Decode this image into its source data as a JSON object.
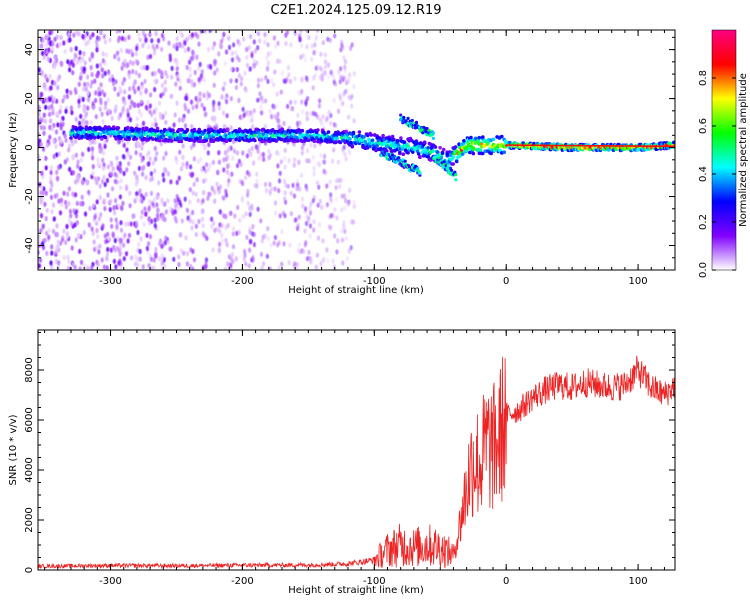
{
  "figure": {
    "title": "C2E1.2024.125.09.12.R19"
  },
  "chart_data": [
    {
      "type": "heatmap",
      "title": "C2E1.2024.125.09.12.R19",
      "xlabel": "Height of straight line (km)",
      "ylabel": "Frequency (Hz)",
      "xlim": [
        -355,
        128
      ],
      "ylim": [
        -50,
        48
      ],
      "x_ticks": [
        -300,
        -200,
        -100,
        0,
        100
      ],
      "y_ticks": [
        -40,
        -20,
        0,
        20,
        40
      ],
      "grid": false,
      "colorbar": {
        "label": "Normalized spectral amplitude",
        "range": [
          0,
          1
        ],
        "ticks": [
          0.0,
          0.2,
          0.4,
          0.6,
          0.8
        ],
        "colormap": [
          "#ffffff",
          "#8000ff",
          "#0000ff",
          "#00ffff",
          "#00ff00",
          "#ffff00",
          "#ff0000",
          "#ff0080"
        ]
      },
      "ridge": {
        "description_free": true,
        "x": [
          -330,
          -300,
          -250,
          -200,
          -150,
          -120,
          -100,
          -85,
          -70,
          -55,
          -45,
          -38,
          -30,
          -20,
          -10,
          0,
          50,
          100,
          128
        ],
        "y": [
          6,
          6,
          5,
          5,
          5,
          4,
          2,
          1,
          0,
          -2,
          -5,
          -3,
          1,
          1,
          1,
          1,
          0,
          0,
          1
        ]
      },
      "secondary_branches": [
        {
          "x": [
            -80,
            -65,
            -55
          ],
          "y": [
            12,
            8,
            5
          ]
        },
        {
          "x": [
            -95,
            -80,
            -65
          ],
          "y": [
            -2,
            -6,
            -10
          ]
        },
        {
          "x": [
            -55,
            -45,
            -38
          ],
          "y": [
            -4,
            -8,
            -12
          ]
        }
      ],
      "noise_region_x": [
        -355,
        -115
      ]
    },
    {
      "type": "line",
      "xlabel": "Height of straight line (km)",
      "ylabel": "SNR (10 * v/v)",
      "xlim": [
        -355,
        128
      ],
      "ylim": [
        0,
        9600
      ],
      "x_ticks": [
        -300,
        -200,
        -100,
        0,
        100
      ],
      "y_ticks": [
        0,
        2000,
        4000,
        6000,
        8000
      ],
      "grid": false,
      "series_color": "#ee2222",
      "x": [
        -355,
        -300,
        -250,
        -200,
        -150,
        -120,
        -100,
        -90,
        -80,
        -70,
        -60,
        -50,
        -40,
        -35,
        -30,
        -25,
        -20,
        -15,
        -10,
        -5,
        0,
        10,
        20,
        30,
        40,
        50,
        60,
        70,
        80,
        90,
        100,
        110,
        120,
        128
      ],
      "y": [
        150,
        180,
        170,
        190,
        200,
        250,
        400,
        800,
        1000,
        900,
        1000,
        900,
        600,
        1800,
        3300,
        4500,
        4200,
        5000,
        4800,
        5300,
        6200,
        6400,
        6900,
        7200,
        7400,
        7300,
        7500,
        7400,
        7300,
        7400,
        8000,
        7300,
        7000,
        7400
      ]
    }
  ]
}
